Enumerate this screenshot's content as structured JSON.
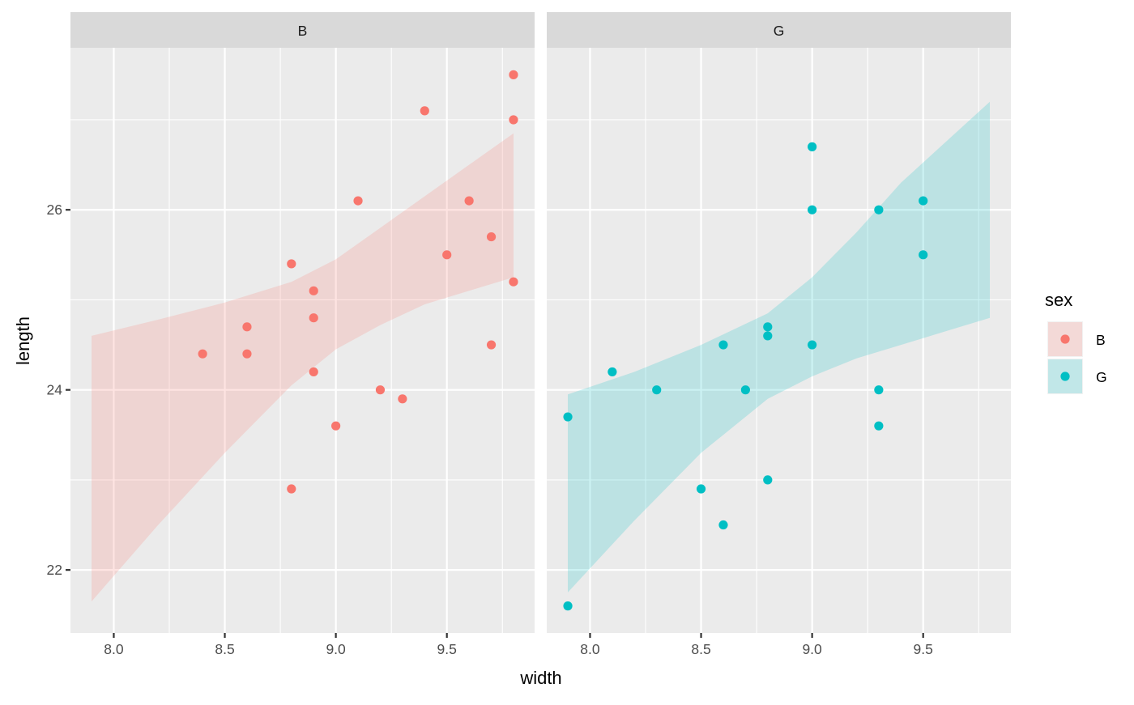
{
  "chart_data": {
    "type": "scatter",
    "title": "",
    "xlabel": "width",
    "ylabel": "length",
    "xlim": [
      7.805,
      9.895
    ],
    "ylim": [
      21.3,
      27.8
    ],
    "x_ticks": [
      8.0,
      8.5,
      9.0,
      9.5
    ],
    "x_tick_labels": [
      "8.0",
      "8.5",
      "9.0",
      "9.5"
    ],
    "x_minor": [
      8.25,
      8.75,
      9.25,
      9.75
    ],
    "y_ticks": [
      22,
      24,
      26
    ],
    "y_tick_labels": [
      "22",
      "24",
      "26"
    ],
    "y_minor": [
      23,
      25,
      27
    ],
    "grid": true,
    "facet_by": "sex",
    "legend": {
      "title": "sex",
      "position": "right",
      "entries": [
        {
          "label": "B",
          "color": "#F8766D"
        },
        {
          "label": "G",
          "color": "#00BFC4"
        }
      ]
    },
    "panels": [
      {
        "strip": "B",
        "color": "#F8766D",
        "points": [
          {
            "x": 8.4,
            "y": 24.4
          },
          {
            "x": 8.6,
            "y": 24.7
          },
          {
            "x": 8.6,
            "y": 24.4
          },
          {
            "x": 8.8,
            "y": 25.4
          },
          {
            "x": 8.8,
            "y": 22.9
          },
          {
            "x": 8.9,
            "y": 25.1
          },
          {
            "x": 8.9,
            "y": 24.8
          },
          {
            "x": 8.9,
            "y": 24.2
          },
          {
            "x": 9.0,
            "y": 23.6
          },
          {
            "x": 9.1,
            "y": 26.1
          },
          {
            "x": 9.2,
            "y": 24.0
          },
          {
            "x": 9.3,
            "y": 23.9
          },
          {
            "x": 9.4,
            "y": 27.1
          },
          {
            "x": 9.5,
            "y": 25.5
          },
          {
            "x": 9.6,
            "y": 26.1
          },
          {
            "x": 9.7,
            "y": 25.7
          },
          {
            "x": 9.7,
            "y": 24.5
          },
          {
            "x": 9.8,
            "y": 27.5
          },
          {
            "x": 9.8,
            "y": 27.0
          },
          {
            "x": 9.8,
            "y": 25.2
          }
        ],
        "ribbon": {
          "x": [
            7.9,
            8.2,
            8.5,
            8.8,
            9.0,
            9.2,
            9.4,
            9.6,
            9.8
          ],
          "upper": [
            24.6,
            24.78,
            24.97,
            25.2,
            25.45,
            25.8,
            26.15,
            26.5,
            26.85
          ],
          "lower": [
            21.65,
            22.5,
            23.3,
            24.05,
            24.45,
            24.72,
            24.95,
            25.1,
            25.25
          ]
        }
      },
      {
        "strip": "G",
        "color": "#00BFC4",
        "points": [
          {
            "x": 7.9,
            "y": 23.7
          },
          {
            "x": 7.9,
            "y": 21.6
          },
          {
            "x": 8.1,
            "y": 24.2
          },
          {
            "x": 8.3,
            "y": 24.0
          },
          {
            "x": 8.5,
            "y": 22.9
          },
          {
            "x": 8.6,
            "y": 24.5
          },
          {
            "x": 8.6,
            "y": 22.5
          },
          {
            "x": 8.7,
            "y": 24.0
          },
          {
            "x": 8.8,
            "y": 24.7
          },
          {
            "x": 8.8,
            "y": 24.6
          },
          {
            "x": 8.8,
            "y": 23.0
          },
          {
            "x": 9.0,
            "y": 26.7
          },
          {
            "x": 9.0,
            "y": 26.0
          },
          {
            "x": 9.0,
            "y": 24.5
          },
          {
            "x": 9.3,
            "y": 26.0
          },
          {
            "x": 9.3,
            "y": 24.0
          },
          {
            "x": 9.3,
            "y": 23.6
          },
          {
            "x": 9.5,
            "y": 26.1
          },
          {
            "x": 9.5,
            "y": 25.5
          }
        ],
        "ribbon": {
          "x": [
            7.9,
            8.2,
            8.5,
            8.8,
            9.0,
            9.2,
            9.4,
            9.6,
            9.8
          ],
          "upper": [
            23.95,
            24.2,
            24.5,
            24.85,
            25.25,
            25.75,
            26.3,
            26.75,
            27.2
          ],
          "lower": [
            21.75,
            22.55,
            23.3,
            23.9,
            24.15,
            24.35,
            24.5,
            24.65,
            24.8
          ]
        }
      }
    ]
  }
}
